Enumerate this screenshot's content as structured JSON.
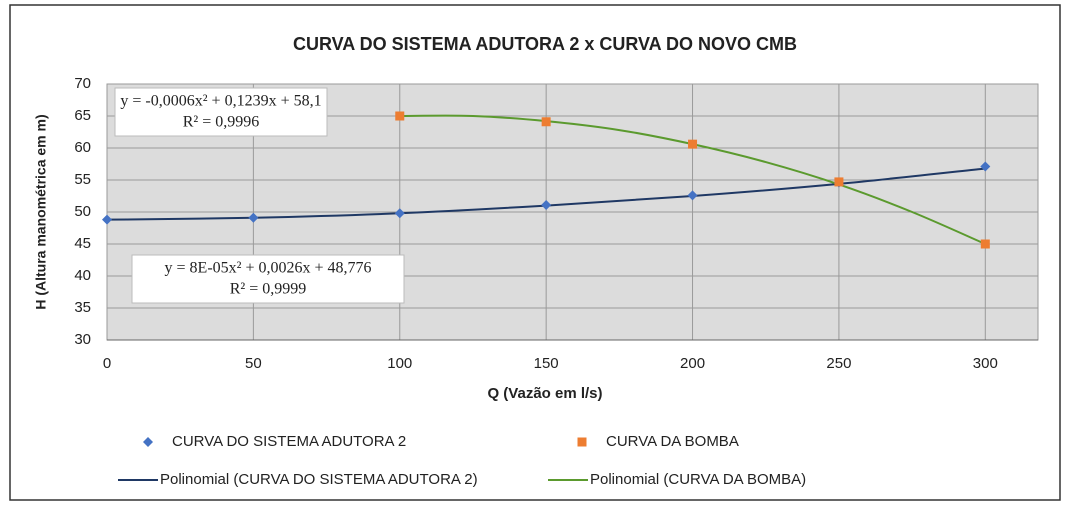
{
  "chart_data": {
    "type": "scatter",
    "title": "CURVA DO SISTEMA ADUTORA 2 x CURVA DO NOVO CMB",
    "x_label": "Q (Vazão em l/s)",
    "y_label": "H (Altura manométrica em m)",
    "xlim": [
      0,
      318
    ],
    "ylim": [
      30,
      70
    ],
    "xticks": [
      0,
      50,
      100,
      150,
      200,
      250,
      300
    ],
    "yticks": [
      30,
      35,
      40,
      45,
      50,
      55,
      60,
      65,
      70
    ],
    "grid": true,
    "legend": "bottom",
    "series": [
      {
        "name": "CURVA DO SISTEMA ADUTORA 2",
        "color": "#4472c4",
        "marker": "diamond",
        "x": [
          0,
          50,
          100,
          150,
          200,
          250,
          300
        ],
        "values": [
          48.8,
          49.1,
          49.8,
          51.1,
          52.6,
          54.6,
          57.1
        ]
      },
      {
        "name": "CURVA DA BOMBA",
        "color": "#ed7d31",
        "marker": "square",
        "x": [
          100,
          150,
          200,
          250,
          300
        ],
        "values": [
          65,
          64.1,
          60.6,
          54.7,
          45
        ]
      },
      {
        "name": "Polinomial (CURVA DO SISTEMA ADUTORA 2)",
        "color": "#1f3864",
        "marker": "line",
        "x": [
          0,
          50,
          100,
          150,
          200,
          250,
          300
        ],
        "values": [
          48.8,
          49.1,
          49.8,
          51.0,
          52.5,
          54.4,
          56.8
        ]
      },
      {
        "name": "Polinomial (CURVA DA BOMBA)",
        "color": "#5b9a2e",
        "marker": "line",
        "x": [
          100,
          125,
          150,
          175,
          200,
          225,
          250,
          275,
          300
        ],
        "values": [
          65,
          65,
          64.2,
          62.8,
          60.6,
          57.8,
          54.3,
          50.0,
          45.0
        ]
      }
    ],
    "annotations": [
      {
        "equation": "y = -0,0006x² + 0,1239x + 58,1",
        "r2": "R² = 0,9996"
      },
      {
        "equation": "y = 8E-05x² + 0,0026x + 48,776",
        "r2": "R² = 0,9999"
      }
    ]
  }
}
